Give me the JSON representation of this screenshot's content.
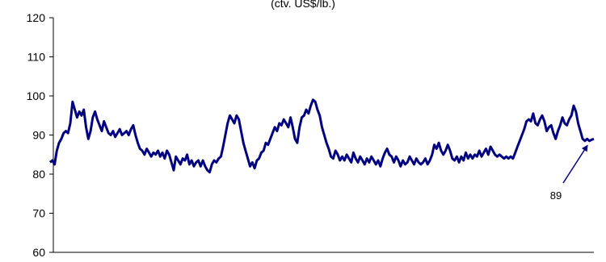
{
  "chart_data": {
    "type": "line",
    "title": "",
    "subtitle": "(ctv. US$/lb.)",
    "xlabel": "",
    "ylabel": "",
    "ylim": [
      60,
      120
    ],
    "yticks": [
      60,
      70,
      80,
      90,
      100,
      110,
      120
    ],
    "grid": false,
    "legend": "none",
    "series": [
      {
        "color": "#000080",
        "values": [
          83.0,
          83.5,
          82.5,
          86.0,
          88.0,
          89.0,
          90.5,
          91.0,
          90.5,
          93.0,
          98.5,
          96.5,
          94.5,
          96.0,
          95.0,
          96.5,
          92.0,
          89.0,
          91.0,
          94.5,
          96.0,
          94.0,
          92.5,
          91.0,
          93.5,
          92.0,
          90.5,
          90.0,
          91.0,
          89.5,
          90.5,
          91.5,
          90.0,
          90.5,
          91.0,
          90.0,
          91.5,
          92.5,
          90.0,
          88.0,
          86.5,
          86.0,
          85.0,
          86.5,
          85.5,
          84.5,
          85.5,
          85.0,
          86.0,
          84.5,
          85.5,
          84.0,
          86.0,
          85.0,
          83.0,
          81.0,
          84.5,
          83.5,
          82.5,
          84.0,
          83.5,
          85.0,
          82.5,
          83.5,
          82.0,
          83.0,
          83.5,
          82.0,
          83.5,
          82.0,
          81.0,
          80.5,
          82.5,
          83.5,
          83.0,
          84.0,
          84.5,
          87.0,
          90.0,
          93.0,
          95.0,
          94.0,
          93.0,
          95.0,
          94.0,
          91.0,
          88.0,
          86.0,
          84.0,
          82.0,
          83.0,
          81.5,
          83.5,
          84.0,
          85.5,
          86.0,
          88.0,
          87.5,
          89.0,
          90.5,
          92.0,
          91.0,
          93.0,
          92.5,
          94.0,
          93.0,
          92.0,
          94.5,
          92.0,
          89.0,
          88.0,
          92.0,
          94.5,
          95.0,
          96.5,
          95.5,
          97.5,
          99.0,
          98.5,
          96.5,
          95.0,
          92.0,
          90.0,
          88.0,
          86.5,
          84.5,
          84.0,
          86.0,
          85.0,
          83.5,
          84.5,
          83.5,
          85.0,
          84.0,
          83.0,
          85.5,
          84.0,
          83.0,
          84.5,
          83.5,
          82.5,
          84.0,
          83.0,
          84.5,
          83.5,
          82.5,
          83.5,
          82.0,
          84.0,
          85.5,
          86.5,
          85.0,
          84.5,
          83.0,
          84.5,
          83.5,
          82.0,
          83.5,
          82.5,
          83.0,
          84.5,
          83.5,
          82.5,
          84.0,
          83.0,
          82.5,
          83.0,
          84.0,
          82.5,
          83.5,
          85.0,
          87.5,
          86.5,
          88.0,
          86.0,
          85.0,
          86.0,
          87.5,
          86.0,
          84.0,
          83.5,
          84.5,
          83.0,
          84.5,
          83.5,
          85.5,
          84.0,
          85.0,
          84.0,
          85.0,
          84.5,
          86.0,
          84.5,
          85.5,
          86.5,
          85.0,
          87.0,
          86.0,
          85.0,
          84.5,
          85.0,
          84.5,
          84.0,
          84.5,
          84.0,
          84.5,
          84.0,
          85.5,
          87.0,
          88.5,
          90.0,
          91.5,
          93.5,
          94.0,
          93.5,
          95.5,
          93.0,
          92.5,
          94.0,
          95.0,
          93.5,
          91.0,
          92.0,
          92.5,
          90.5,
          89.0,
          91.0,
          92.5,
          94.5,
          93.0,
          92.5,
          94.0,
          95.0,
          97.5,
          96.0,
          93.0,
          91.0,
          89.0,
          88.5,
          89.0,
          88.5,
          88.8,
          89.0
        ]
      }
    ],
    "annotations": [
      {
        "text": "89",
        "value": 89
      }
    ]
  }
}
